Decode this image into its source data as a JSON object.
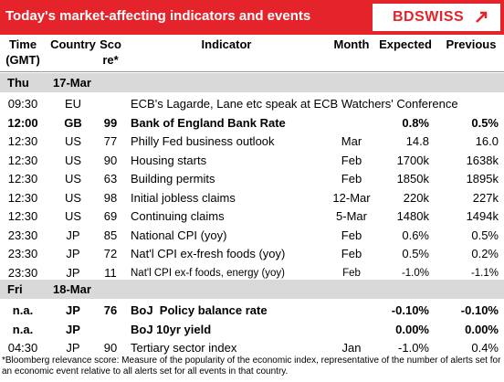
{
  "header": {
    "title": "Today's market-affecting indicators and events",
    "logo": "BDSWISS"
  },
  "columns": [
    [
      "Time",
      "(GMT)"
    ],
    [
      "Country"
    ],
    [
      "Sco",
      "re*"
    ],
    [
      "Indicator"
    ],
    [
      "Month"
    ],
    [
      "Expected"
    ],
    [
      "Previous"
    ]
  ],
  "days": [
    {
      "day": "Thu",
      "date": "17-Mar",
      "rows": [
        {
          "cells": [
            "09:30",
            "EU",
            null,
            "ECB's Lagarde, Lane etc speak at ECB Watchers' Conference",
            null,
            null,
            null
          ]
        },
        {
          "bold": true,
          "cells": [
            "12:00",
            "GB",
            "99",
            "Bank of England Bank Rate",
            null,
            "0.8%",
            "0.5%"
          ]
        },
        {
          "cells": [
            "12:30",
            "US",
            "77",
            "Philly Fed business outlook",
            "Mar",
            "14.8",
            "16.0"
          ]
        },
        {
          "cells": [
            "12:30",
            "US",
            "90",
            "Housing starts",
            "Feb",
            "1700k",
            "1638k"
          ]
        },
        {
          "cells": [
            "12:30",
            "US",
            "63",
            "Building permits",
            "Feb",
            "1850k",
            "1895k"
          ]
        },
        {
          "cells": [
            "12:30",
            "US",
            "98",
            "Initial jobless claims",
            "12-Mar",
            "220k",
            "227k"
          ]
        },
        {
          "cells": [
            "12:30",
            "US",
            "69",
            "Continuing claims",
            "5-Mar",
            "1480k",
            "1494k"
          ]
        },
        {
          "cells": [
            "23:30",
            "JP",
            "85",
            "National CPI (yoy)",
            "Feb",
            "0.6%",
            "0.5%"
          ]
        },
        {
          "cells": [
            "23:30",
            "JP",
            "72",
            "Nat'l CPI ex-fresh foods (yoy)",
            "Feb",
            "0.5%",
            "0.2%"
          ]
        },
        {
          "small": true,
          "cells": [
            "23:30",
            "JP",
            "11",
            "Nat'l CPI ex-f foods, energy (yoy)",
            "Feb",
            "-1.0%",
            "-1.1%"
          ]
        }
      ]
    },
    {
      "day": "Fri",
      "date": "18-Mar",
      "rows": [
        {
          "bold": true,
          "cells": [
            "n.a.",
            "JP",
            "76",
            "BoJ  Policy balance rate",
            null,
            "-0.10%",
            "-0.10%"
          ]
        },
        {
          "bold": true,
          "cells": [
            "n.a.",
            "JP",
            null,
            "BoJ 10yr yield",
            null,
            "0.00%",
            "0.00%"
          ]
        },
        {
          "cells": [
            "04:30",
            "JP",
            "90",
            "Tertiary sector index",
            "Jan",
            "-1.0%",
            "0.4%"
          ]
        }
      ]
    }
  ],
  "footnote": "*Bloomberg relevance score: Measure of the popularity of the economic index, representative of the number of alerts set for an economic event relative to all alerts set for all events in that country."
}
